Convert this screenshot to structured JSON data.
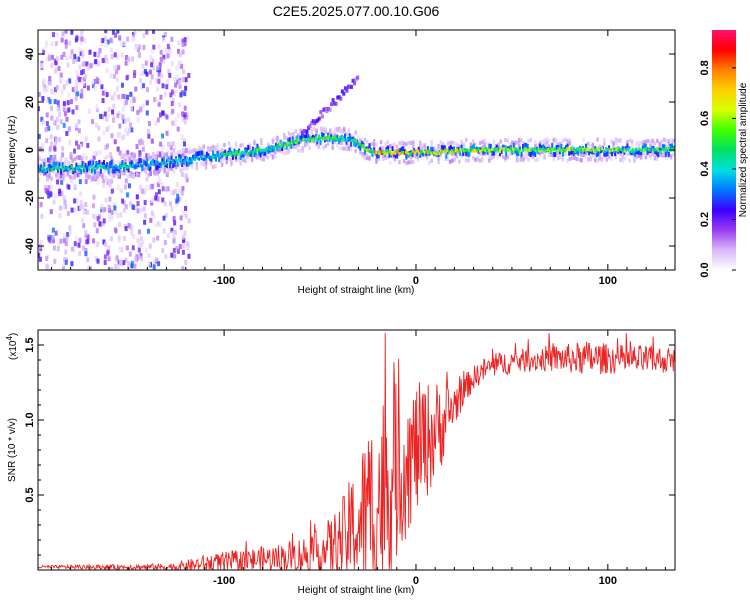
{
  "title": "C2E5.2025.077.00.10.G06",
  "chart_data": [
    {
      "type": "heatmap",
      "xlabel": "Height of straight line (km)",
      "ylabel": "Frequency (Hz)",
      "xlim": [
        -197,
        135
      ],
      "ylim": [
        -50,
        50
      ],
      "xticks": [
        -100,
        0,
        100
      ],
      "yticks": [
        -40,
        -20,
        0,
        20,
        40
      ],
      "colorbar": {
        "label": "Normalized spectral amplitude",
        "range": [
          0,
          0.95
        ],
        "ticks": [
          0.0,
          0.2,
          0.4,
          0.6,
          0.8
        ],
        "colors": [
          "#ffffff",
          "#d8b8f8",
          "#9a3cf0",
          "#3a00ff",
          "#0078ff",
          "#00e0e0",
          "#00e060",
          "#40ff00",
          "#d8ff00",
          "#ffd000",
          "#ff8000",
          "#ff0000",
          "#ff1070"
        ]
      },
      "ridge": {
        "x": [
          -197,
          -160,
          -140,
          -120,
          -100,
          -80,
          -70,
          -60,
          -50,
          -40,
          -32,
          -25,
          -20,
          -15,
          -10,
          -5,
          0,
          10,
          30,
          60,
          90,
          110,
          135
        ],
        "y": [
          -8,
          -7,
          -6,
          -4,
          -2,
          0,
          2,
          4,
          5,
          5,
          4,
          0,
          -1,
          -1,
          -1,
          -1,
          -1,
          -1,
          0,
          0,
          0,
          0,
          0
        ],
        "amplitude": [
          0.5,
          0.5,
          0.45,
          0.45,
          0.5,
          0.55,
          0.6,
          0.6,
          0.55,
          0.55,
          0.5,
          0.75,
          0.8,
          0.8,
          0.85,
          0.85,
          0.8,
          0.75,
          0.7,
          0.65,
          0.65,
          0.6,
          0.6
        ]
      },
      "branch": {
        "x": [
          -60,
          -50,
          -40,
          -30
        ],
        "y": [
          6,
          14,
          22,
          30
        ]
      }
    },
    {
      "type": "line",
      "xlabel": "Height of straight line (km)",
      "ylabel": "SNR (10 * v/v)",
      "y_multiplier": "(x10",
      "y_multiplier_exp": "4",
      "y_multiplier_close": ")",
      "xlim": [
        -197,
        135
      ],
      "ylim": [
        0,
        1.6
      ],
      "xticks": [
        -100,
        0,
        100
      ],
      "yticks": [
        0.5,
        1.0,
        1.5
      ],
      "color": "#ee2222",
      "envelope": {
        "x": [
          -197,
          -140,
          -125,
          -110,
          -90,
          -70,
          -50,
          -40,
          -30,
          -25,
          -20,
          -15,
          -10,
          -5,
          0,
          5,
          10,
          15,
          20,
          25,
          30,
          35,
          40,
          50,
          60,
          70,
          80,
          90,
          100,
          110,
          120,
          135
        ],
        "base": [
          0.02,
          0.02,
          0.02,
          0.04,
          0.06,
          0.08,
          0.12,
          0.18,
          0.3,
          0.38,
          0.45,
          0.55,
          0.65,
          0.72,
          0.8,
          0.86,
          0.92,
          1.0,
          1.1,
          1.2,
          1.28,
          1.33,
          1.36,
          1.39,
          1.4,
          1.41,
          1.41,
          1.41,
          1.41,
          1.4,
          1.4,
          1.4
        ],
        "noise": [
          0.01,
          0.02,
          0.03,
          0.06,
          0.08,
          0.1,
          0.15,
          0.25,
          0.45,
          0.6,
          0.7,
          0.7,
          0.6,
          0.5,
          0.45,
          0.4,
          0.35,
          0.25,
          0.15,
          0.1,
          0.08,
          0.08,
          0.08,
          0.08,
          0.08,
          0.09,
          0.1,
          0.12,
          0.1,
          0.1,
          0.1,
          0.08
        ]
      }
    }
  ]
}
